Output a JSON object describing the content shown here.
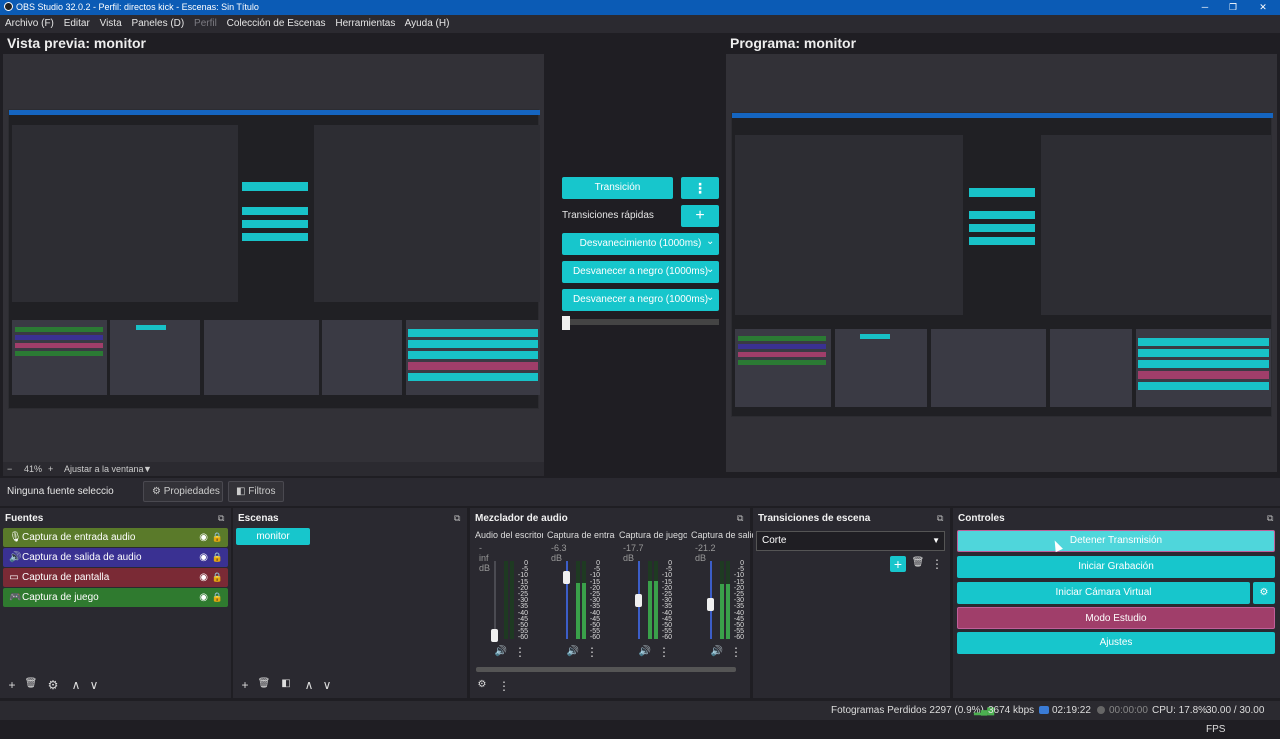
{
  "window": {
    "title": "OBS Studio 32.0.2 - Perfil: directos kick - Escenas: Sin Título",
    "minimize": "─",
    "maximize": "❐",
    "close": "✕"
  },
  "menu": [
    {
      "label": "Archivo (F)",
      "enabled": true
    },
    {
      "label": "Editar",
      "enabled": true
    },
    {
      "label": "Vista",
      "enabled": true
    },
    {
      "label": "Paneles (D)",
      "enabled": true
    },
    {
      "label": "Perfil",
      "enabled": false
    },
    {
      "label": "Colección de Escenas",
      "enabled": true
    },
    {
      "label": "Herramientas",
      "enabled": true
    },
    {
      "label": "Ayuda (H)",
      "enabled": true
    }
  ],
  "preview": {
    "title": "Vista previa: monitor",
    "zoom_minus": "−",
    "zoom": "41%",
    "zoom_plus": "+",
    "fit_label": "Ajustar a la ventana",
    "fit_arrow": "▼"
  },
  "program": {
    "title": "Programa: monitor"
  },
  "transition_panel": {
    "transition_label": "Transición",
    "dots": "⋮",
    "quick_label": "Transiciones rápidas",
    "plus": "+",
    "quick": [
      "Desvanecimiento (1000ms)",
      "Desvanecer a negro (1000ms)",
      "Desvanecer a negro (1000ms)"
    ],
    "chevron": "⌄"
  },
  "source_toolbar": {
    "no_source": "Ninguna fuente seleccionada",
    "properties_label": "Propiedades",
    "filters_label": "Filtros"
  },
  "docks": {
    "sources": {
      "title": "Fuentes",
      "items": [
        {
          "label": "Captura de entrada audio",
          "icon": "🎙",
          "color": "#5a7a2a"
        },
        {
          "label": "Captura de salida de audio",
          "icon": "🔊",
          "color": "#3a3192"
        },
        {
          "label": "Captura de pantalla",
          "icon": "▭",
          "color": "#7a2a35"
        },
        {
          "label": "Captura de juego",
          "icon": "🎮",
          "color": "#2f7a2f"
        }
      ]
    },
    "scenes": {
      "title": "Escenas",
      "items": [
        "monitor"
      ]
    },
    "mixer": {
      "title": "Mezclador de audio",
      "channels": [
        {
          "name": "Audio del escritorio",
          "db": "-inf dB",
          "level": 0,
          "volume": 0.05
        },
        {
          "name": "Captura de entrada audio",
          "db": "-6.3 dB",
          "level": 0.72,
          "volume": 0.8
        },
        {
          "name": "Captura de juego",
          "db": "-17.7 dB",
          "level": 0.75,
          "volume": 0.5
        },
        {
          "name": "Captura de salida de audio",
          "db": "-21.2 dB",
          "level": 0.7,
          "volume": 0.45
        }
      ],
      "scale": [
        "0",
        "-5",
        "-10",
        "-15",
        "-20",
        "-25",
        "-30",
        "-35",
        "-40",
        "-45",
        "-50",
        "-55",
        "-60"
      ]
    },
    "scene_transitions": {
      "title": "Transiciones de escena",
      "selected": "Corte",
      "plus": "+",
      "trash": "🗑",
      "dots": "⋮"
    },
    "controls": {
      "title": "Controles",
      "stop_stream": "Detener Transmisión",
      "start_record": "Iniciar Grabación",
      "start_vcam": "Iniciar Cámara Virtual",
      "studio_mode": "Modo Estudio",
      "settings": "Ajustes",
      "gear": "⚙"
    }
  },
  "dock_icons": {
    "popout": "⧉",
    "add": "+",
    "remove": "🗑",
    "props": "⚙",
    "up": "∧",
    "down": "∨",
    "filter": "◧",
    "mixer_settings": "⚙",
    "dots": "⋮",
    "speaker": "🔊"
  },
  "status": {
    "dropped": "Fotogramas Perdidos 2297 (0.9%)",
    "kbps": "3674 kbps",
    "stream_time": "02:19:22",
    "rec_time": "00:00:00",
    "cpu": "CPU: 17.8%",
    "fps": "30.00 / 30.00 FPS"
  }
}
